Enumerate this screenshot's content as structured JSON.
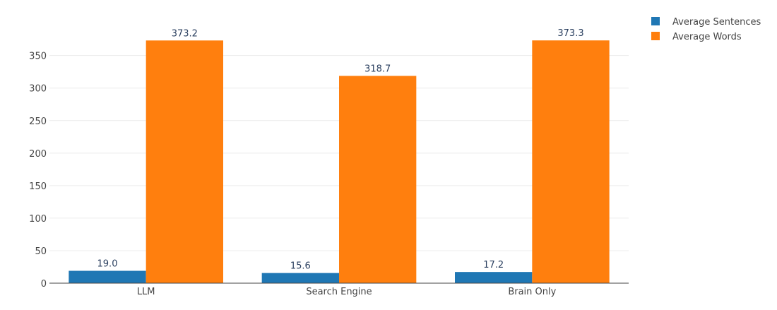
{
  "chart_data": {
    "type": "bar",
    "categories": [
      "LLM",
      "Search Engine",
      "Brain Only"
    ],
    "series": [
      {
        "name": "Average Sentences",
        "color": "#1f77b4",
        "values": [
          19.0,
          15.6,
          17.2
        ],
        "labels": [
          "19.0",
          "15.6",
          "17.2"
        ]
      },
      {
        "name": "Average Words",
        "color": "#ff7f0e",
        "values": [
          373.2,
          318.7,
          373.3
        ],
        "labels": [
          "373.2",
          "318.7",
          "373.3"
        ]
      }
    ],
    "title": "",
    "xlabel": "",
    "ylabel": "",
    "ylim": [
      0,
      392
    ],
    "yticks": [
      0,
      50,
      100,
      150,
      200,
      250,
      300,
      350
    ],
    "grid": true,
    "legend": "top-right"
  }
}
